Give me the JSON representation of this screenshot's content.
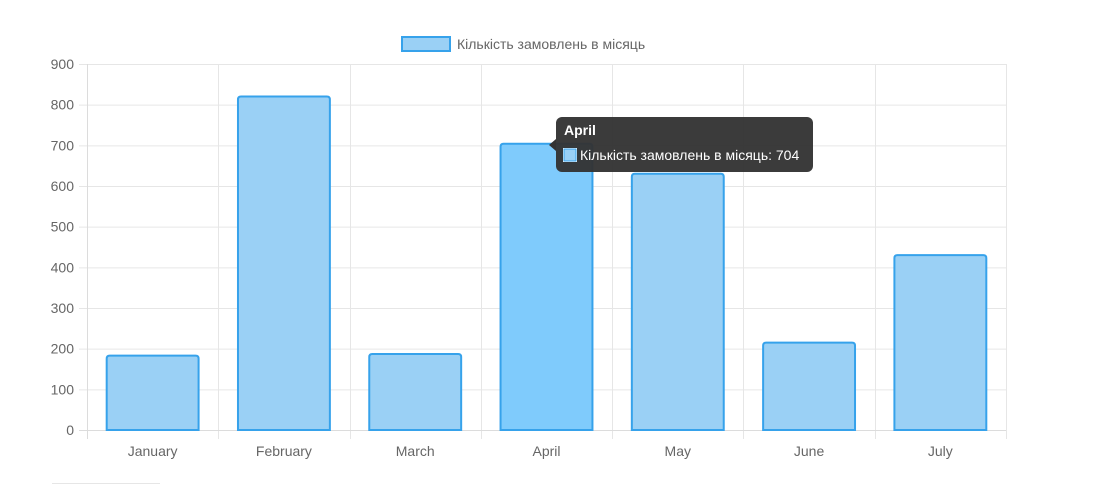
{
  "chart_data": {
    "type": "bar",
    "categories": [
      "January",
      "February",
      "March",
      "April",
      "May",
      "June",
      "July"
    ],
    "series": [
      {
        "name": "Кількість замовлень в місяць",
        "values": [
          183,
          820,
          187,
          704,
          630,
          215,
          430
        ]
      }
    ],
    "ylim": [
      0,
      900
    ],
    "yticks": [
      0,
      100,
      200,
      300,
      400,
      500,
      600,
      700,
      800,
      900
    ],
    "grid": true,
    "legend": "top-center",
    "tooltip": {
      "category": "April",
      "label": "Кількість замовлень в місяць: 704"
    },
    "colors": {
      "bar_fill": "#9ad0f5",
      "bar_fill_active": "#7fcbfc",
      "bar_stroke": "#36a2eb",
      "grid": "#e6e6e6",
      "text": "#666666",
      "tooltip_bg": "#333333"
    }
  }
}
